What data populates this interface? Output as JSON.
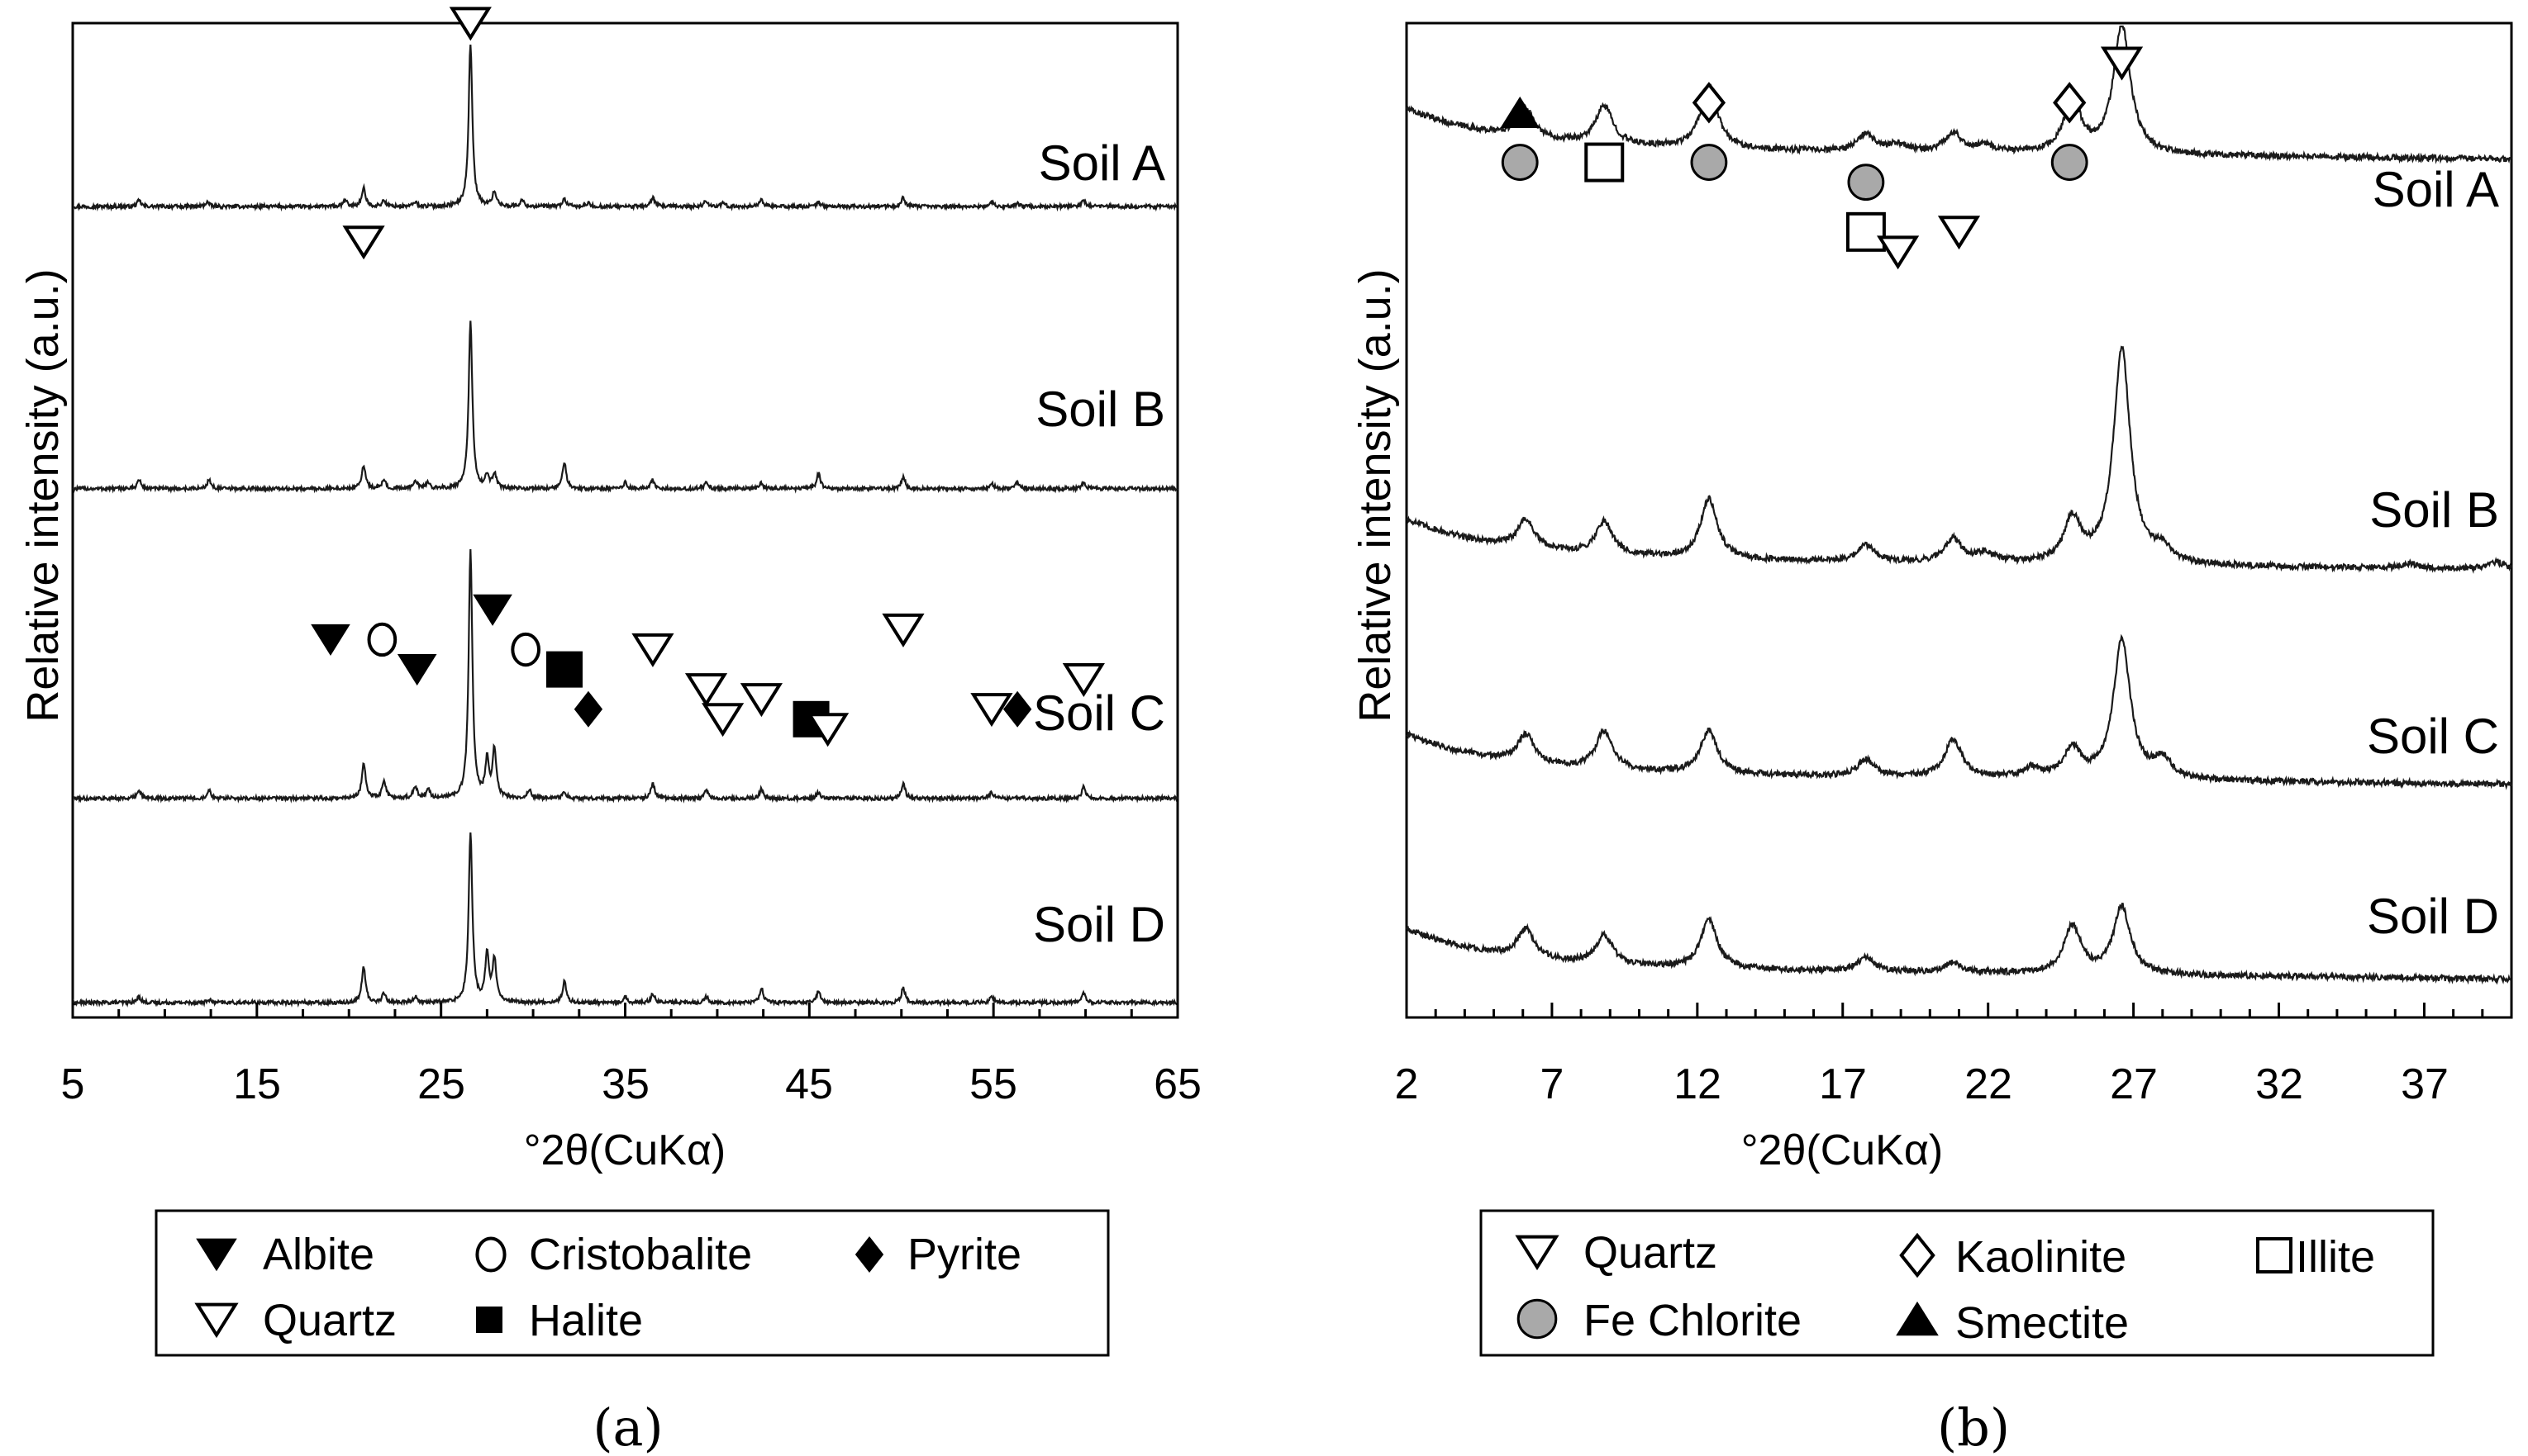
{
  "chart_data": [
    {
      "type": "line",
      "panel_caption": "(a)",
      "xlabel": "°2θ(CuKα)",
      "ylabel": "Relative intensity (a.u.)",
      "xlim": [
        5,
        65
      ],
      "xticks": [
        "5",
        "15",
        "25",
        "35",
        "45",
        "55",
        "65"
      ],
      "series": [
        {
          "name": "Soil A",
          "baseline": 0.26,
          "peaks": [
            [
              8.6,
              0.02
            ],
            [
              12.3,
              0.015
            ],
            [
              19.8,
              0.02
            ],
            [
              20.8,
              0.06
            ],
            [
              21.9,
              0.02
            ],
            [
              23.6,
              0.015
            ],
            [
              26.6,
              0.54
            ],
            [
              27.9,
              0.05
            ],
            [
              29.4,
              0.02
            ],
            [
              31.7,
              0.025
            ],
            [
              33.0,
              0.01
            ],
            [
              36.5,
              0.03
            ],
            [
              39.4,
              0.02
            ],
            [
              40.3,
              0.01
            ],
            [
              42.4,
              0.025
            ],
            [
              45.5,
              0.015
            ],
            [
              50.1,
              0.03
            ],
            [
              54.9,
              0.015
            ],
            [
              56.3,
              0.01
            ],
            [
              59.9,
              0.02
            ]
          ]
        },
        {
          "name": "Soil B",
          "baseline": 0.05,
          "peaks": [
            [
              8.6,
              0.03
            ],
            [
              12.4,
              0.03
            ],
            [
              20.8,
              0.08
            ],
            [
              21.9,
              0.03
            ],
            [
              23.6,
              0.03
            ],
            [
              24.3,
              0.02
            ],
            [
              26.6,
              0.55
            ],
            [
              27.5,
              0.04
            ],
            [
              27.9,
              0.05
            ],
            [
              31.7,
              0.09
            ],
            [
              35.0,
              0.02
            ],
            [
              36.5,
              0.03
            ],
            [
              39.4,
              0.02
            ],
            [
              42.4,
              0.02
            ],
            [
              45.5,
              0.05
            ],
            [
              50.1,
              0.04
            ],
            [
              54.9,
              0.02
            ],
            [
              56.3,
              0.02
            ],
            [
              59.9,
              0.02
            ]
          ]
        },
        {
          "name": "Soil C",
          "baseline": 0.05,
          "peaks": [
            [
              8.6,
              0.03
            ],
            [
              12.4,
              0.03
            ],
            [
              20.8,
              0.12
            ],
            [
              21.9,
              0.06
            ],
            [
              23.6,
              0.04
            ],
            [
              24.3,
              0.03
            ],
            [
              26.6,
              0.82
            ],
            [
              27.5,
              0.12
            ],
            [
              27.9,
              0.16
            ],
            [
              29.8,
              0.03
            ],
            [
              31.7,
              0.02
            ],
            [
              36.5,
              0.05
            ],
            [
              39.4,
              0.03
            ],
            [
              42.4,
              0.03
            ],
            [
              45.5,
              0.02
            ],
            [
              50.1,
              0.05
            ],
            [
              54.9,
              0.02
            ],
            [
              59.9,
              0.04
            ]
          ]
        },
        {
          "name": "Soil D",
          "baseline": 0.03,
          "peaks": [
            [
              8.6,
              0.02
            ],
            [
              12.4,
              0.01
            ],
            [
              20.8,
              0.12
            ],
            [
              21.9,
              0.03
            ],
            [
              23.6,
              0.02
            ],
            [
              26.6,
              0.56
            ],
            [
              27.5,
              0.16
            ],
            [
              27.9,
              0.14
            ],
            [
              31.7,
              0.07
            ],
            [
              35.0,
              0.02
            ],
            [
              36.5,
              0.03
            ],
            [
              39.4,
              0.02
            ],
            [
              42.4,
              0.05
            ],
            [
              45.5,
              0.04
            ],
            [
              50.1,
              0.05
            ],
            [
              54.9,
              0.02
            ],
            [
              59.9,
              0.03
            ]
          ]
        }
      ],
      "annotations": [
        {
          "symbol": "quartz",
          "x": 26.6,
          "level": 1.0
        },
        {
          "symbol": "quartz",
          "x": 20.8,
          "level": 0.78
        },
        {
          "symbol": "albite",
          "x": 19.0,
          "level": 0.38
        },
        {
          "symbol": "cristobalite",
          "x": 21.8,
          "level": 0.38
        },
        {
          "symbol": "albite",
          "x": 23.7,
          "level": 0.35
        },
        {
          "symbol": "albite",
          "x": 27.8,
          "level": 0.41
        },
        {
          "symbol": "cristobalite",
          "x": 29.6,
          "level": 0.37
        },
        {
          "symbol": "halite",
          "x": 31.7,
          "level": 0.35
        },
        {
          "symbol": "pyrite",
          "x": 33.0,
          "level": 0.31
        },
        {
          "symbol": "quartz",
          "x": 36.5,
          "level": 0.37
        },
        {
          "symbol": "quartz",
          "x": 39.4,
          "level": 0.33
        },
        {
          "symbol": "quartz",
          "x": 40.3,
          "level": 0.3
        },
        {
          "symbol": "quartz",
          "x": 42.4,
          "level": 0.32
        },
        {
          "symbol": "halite",
          "x": 45.1,
          "level": 0.3
        },
        {
          "symbol": "quartz",
          "x": 46.0,
          "level": 0.29
        },
        {
          "symbol": "quartz",
          "x": 50.1,
          "level": 0.39
        },
        {
          "symbol": "quartz",
          "x": 54.9,
          "level": 0.31
        },
        {
          "symbol": "pyrite",
          "x": 56.3,
          "level": 0.31
        },
        {
          "symbol": "quartz",
          "x": 59.9,
          "level": 0.34
        }
      ],
      "legend": [
        {
          "symbol": "albite",
          "label": "Albite"
        },
        {
          "symbol": "cristobalite",
          "label": "Cristobalite"
        },
        {
          "symbol": "pyrite",
          "label": "Pyrite"
        },
        {
          "symbol": "quartz",
          "label": "Quartz"
        },
        {
          "symbol": "halite",
          "label": "Halite"
        }
      ]
    },
    {
      "type": "line",
      "panel_caption": "(b)",
      "xlabel": "°2θ(CuKα)",
      "ylabel": "Relative intensity (a.u.)",
      "xlim": [
        2,
        40
      ],
      "xticks": [
        "2",
        "7",
        "12",
        "17",
        "22",
        "27",
        "32",
        "37"
      ],
      "series": [
        {
          "name": "Soil A",
          "baseline": 0.42,
          "peaks": [
            [
              6.1,
              0.12
            ],
            [
              8.8,
              0.16
            ],
            [
              12.4,
              0.26
            ],
            [
              17.8,
              0.07
            ],
            [
              18.9,
              0.03
            ],
            [
              20.8,
              0.08
            ],
            [
              21.9,
              0.03
            ],
            [
              24.9,
              0.22
            ],
            [
              26.6,
              0.54
            ]
          ]
        },
        {
          "name": "Soil B",
          "baseline": 0.12,
          "peaks": [
            [
              6.1,
              0.12
            ],
            [
              8.8,
              0.14
            ],
            [
              12.4,
              0.25
            ],
            [
              17.8,
              0.07
            ],
            [
              20.8,
              0.1
            ],
            [
              21.9,
              0.04
            ],
            [
              24.9,
              0.18
            ],
            [
              26.6,
              0.9
            ],
            [
              28.0,
              0.06
            ],
            [
              36.5,
              0.02
            ],
            [
              39.5,
              0.03
            ]
          ]
        },
        {
          "name": "Soil C",
          "baseline": 0.12,
          "peaks": [
            [
              6.1,
              0.12
            ],
            [
              8.8,
              0.16
            ],
            [
              12.4,
              0.18
            ],
            [
              17.8,
              0.07
            ],
            [
              20.8,
              0.16
            ],
            [
              23.5,
              0.04
            ],
            [
              24.9,
              0.12
            ],
            [
              26.6,
              0.58
            ],
            [
              28.0,
              0.08
            ]
          ]
        },
        {
          "name": "Soil D",
          "baseline": 0.1,
          "peaks": [
            [
              6.1,
              0.12
            ],
            [
              8.8,
              0.12
            ],
            [
              12.4,
              0.2
            ],
            [
              17.8,
              0.06
            ],
            [
              20.8,
              0.04
            ],
            [
              24.9,
              0.2
            ],
            [
              26.6,
              0.28
            ]
          ]
        }
      ],
      "annotations": [
        {
          "symbol": "smectite",
          "x": 5.9,
          "level": 0.91
        },
        {
          "symbol": "fe-chlorite",
          "x": 5.9,
          "level": 0.86
        },
        {
          "symbol": "illite",
          "x": 8.8,
          "level": 0.86
        },
        {
          "symbol": "kaolinite",
          "x": 12.4,
          "level": 0.92
        },
        {
          "symbol": "fe-chlorite",
          "x": 12.4,
          "level": 0.86
        },
        {
          "symbol": "fe-chlorite",
          "x": 17.8,
          "level": 0.84
        },
        {
          "symbol": "illite",
          "x": 17.8,
          "level": 0.79
        },
        {
          "symbol": "quartz",
          "x": 18.9,
          "level": 0.77
        },
        {
          "symbol": "quartz",
          "x": 21.0,
          "level": 0.79
        },
        {
          "symbol": "kaolinite",
          "x": 24.8,
          "level": 0.92
        },
        {
          "symbol": "fe-chlorite",
          "x": 24.8,
          "level": 0.86
        },
        {
          "symbol": "quartz",
          "x": 26.6,
          "level": 0.96
        }
      ],
      "legend": [
        {
          "symbol": "quartz",
          "label": "Quartz"
        },
        {
          "symbol": "kaolinite",
          "label": "Kaolinite"
        },
        {
          "symbol": "illite",
          "label": "Illite"
        },
        {
          "symbol": "fe-chlorite",
          "label": "Fe Chlorite"
        },
        {
          "symbol": "smectite",
          "label": "Smectite"
        }
      ]
    }
  ]
}
